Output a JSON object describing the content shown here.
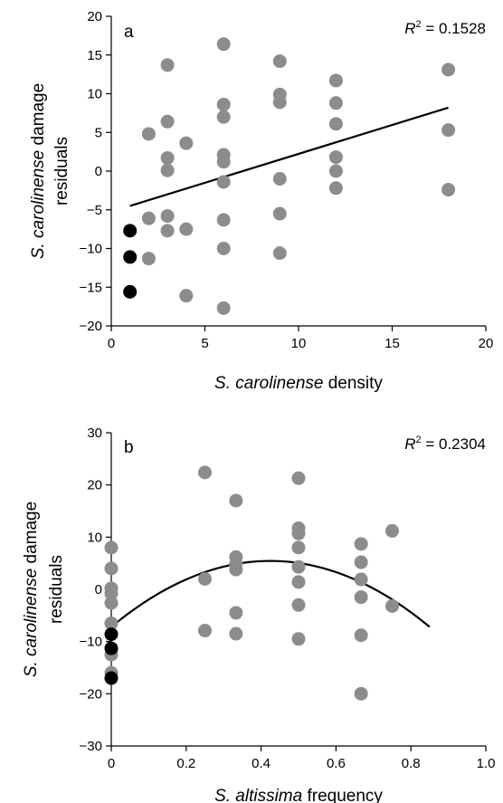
{
  "chart_data": [
    {
      "type": "scatter",
      "panel": "a",
      "xlabel_italic": "S. carolinense",
      "xlabel_rest": " density",
      "ylabel_line1_italic": "S. carolinense",
      "ylabel_line1_rest": " damage",
      "ylabel_line2": "residuals",
      "r2_symbol": "R",
      "r2_exp": "2",
      "r2_value": " = 0.1528",
      "xlim": [
        0,
        20
      ],
      "ylim": [
        -20,
        20
      ],
      "xticks": [
        0,
        5,
        10,
        15,
        20
      ],
      "yticks": [
        -20,
        -15,
        -10,
        -5,
        0,
        5,
        10,
        15,
        20
      ],
      "xtick_labels": [
        "0",
        "5",
        "10",
        "15",
        "20"
      ],
      "ytick_labels": [
        "−20",
        "−15",
        "−10",
        "−5",
        "0",
        "5",
        "10",
        "15",
        "20"
      ],
      "grid": false,
      "gray_color": "#8c8c8c",
      "black_color": "#000000",
      "series": [
        {
          "color": "#8c8c8c",
          "points": [
            [
              2,
              4.8
            ],
            [
              2,
              -6.1
            ],
            [
              2,
              -11.3
            ],
            [
              3,
              13.7
            ],
            [
              3,
              6.4
            ],
            [
              3,
              1.7
            ],
            [
              3,
              0.1
            ],
            [
              3,
              -5.8
            ],
            [
              3,
              -7.7
            ],
            [
              4,
              3.6
            ],
            [
              4,
              -7.5
            ],
            [
              4,
              -16.1
            ],
            [
              6,
              16.4
            ],
            [
              6,
              8.6
            ],
            [
              6,
              7.0
            ],
            [
              6,
              2.1
            ],
            [
              6,
              1.2
            ],
            [
              6,
              -1.4
            ],
            [
              6,
              -6.3
            ],
            [
              6,
              -10.0
            ],
            [
              6,
              -17.7
            ],
            [
              9,
              14.2
            ],
            [
              9,
              9.9
            ],
            [
              9,
              8.9
            ],
            [
              9,
              -1.0
            ],
            [
              9,
              -5.5
            ],
            [
              9,
              -10.6
            ],
            [
              12,
              11.7
            ],
            [
              12,
              8.8
            ],
            [
              12,
              6.1
            ],
            [
              12,
              1.8
            ],
            [
              12,
              0.0
            ],
            [
              12,
              -2.2
            ],
            [
              18,
              13.1
            ],
            [
              18,
              5.3
            ],
            [
              18,
              -2.4
            ]
          ]
        },
        {
          "color": "#000000",
          "points": [
            [
              1,
              -7.7
            ],
            [
              1,
              -11.1
            ],
            [
              1,
              -15.6
            ]
          ]
        }
      ],
      "fit": {
        "type": "linear",
        "points": [
          [
            1,
            -4.5
          ],
          [
            18,
            8.2
          ]
        ]
      }
    },
    {
      "type": "scatter",
      "panel": "b",
      "xlabel_italic": "S. altissima",
      "xlabel_rest": " frequency",
      "ylabel_line1_italic": "S. carolinense",
      "ylabel_line1_rest": " damage",
      "ylabel_line2": "residuals",
      "r2_symbol": "R",
      "r2_exp": "2",
      "r2_value": " = 0.2304",
      "xlim": [
        0,
        1.0
      ],
      "ylim": [
        -30,
        30
      ],
      "xticks": [
        0,
        0.2,
        0.4,
        0.6,
        0.8,
        1.0
      ],
      "yticks": [
        -30,
        -20,
        -10,
        0,
        10,
        20,
        30
      ],
      "xtick_labels": [
        "0",
        "0.2",
        "0.4",
        "0.6",
        "0.8",
        "1.0"
      ],
      "ytick_labels": [
        "−30",
        "−20",
        "−10",
        "0",
        "10",
        "20",
        "30"
      ],
      "grid": false,
      "series": [
        {
          "color": "#8c8c8c",
          "points": [
            [
              0,
              8.0
            ],
            [
              0,
              4.0
            ],
            [
              0,
              0.2
            ],
            [
              0,
              -0.8
            ],
            [
              0,
              -2.6
            ],
            [
              0,
              -6.5
            ],
            [
              0,
              -12.5
            ],
            [
              0,
              -16.0
            ],
            [
              0.25,
              22.4
            ],
            [
              0.25,
              2.0
            ],
            [
              0.25,
              -7.9
            ],
            [
              0.333,
              17.0
            ],
            [
              0.333,
              6.2
            ],
            [
              0.333,
              4.9
            ],
            [
              0.333,
              3.8
            ],
            [
              0.333,
              -4.5
            ],
            [
              0.333,
              -8.5
            ],
            [
              0.5,
              21.3
            ],
            [
              0.5,
              11.7
            ],
            [
              0.5,
              10.7
            ],
            [
              0.5,
              8.0
            ],
            [
              0.5,
              4.3
            ],
            [
              0.5,
              1.4
            ],
            [
              0.5,
              -3.0
            ],
            [
              0.5,
              -9.5
            ],
            [
              0.667,
              8.7
            ],
            [
              0.667,
              5.2
            ],
            [
              0.667,
              1.9
            ],
            [
              0.667,
              -1.5
            ],
            [
              0.667,
              -8.8
            ],
            [
              0.667,
              -20.0
            ],
            [
              0.75,
              11.2
            ],
            [
              0.75,
              -3.2
            ]
          ]
        },
        {
          "color": "#000000",
          "points": [
            [
              0,
              -8.6
            ],
            [
              0,
              -11.3
            ],
            [
              0,
              -17.0
            ]
          ]
        }
      ],
      "fit": {
        "type": "quadratic",
        "x_range": [
          0,
          0.85
        ],
        "a": -70,
        "b": 59.5,
        "c": -7.2
      }
    }
  ]
}
